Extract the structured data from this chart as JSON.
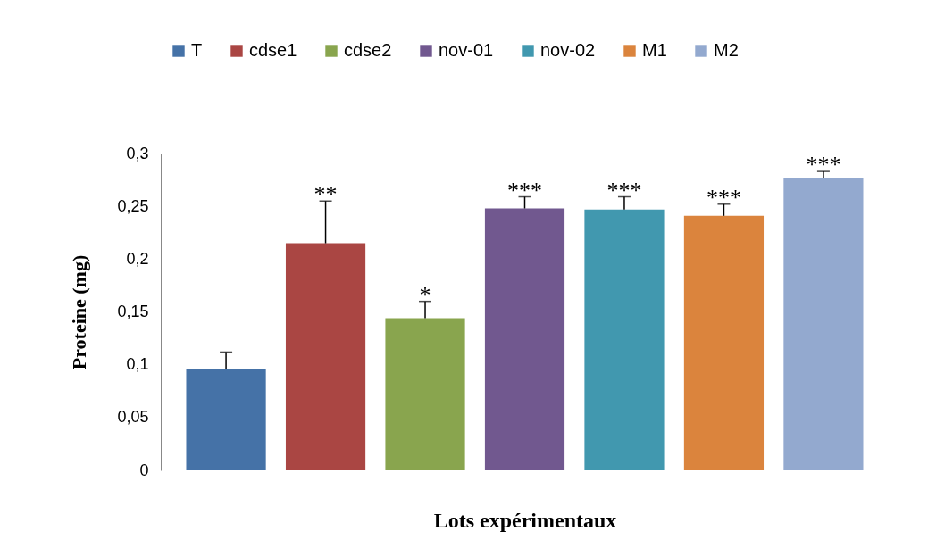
{
  "chart_data": {
    "type": "bar",
    "xlabel": "Lots expérimentaux",
    "ylabel": "Proteine (mg)",
    "categories": [
      null
    ],
    "series": [
      {
        "name": "T",
        "color": "#4572a7",
        "values": [
          0.096
        ],
        "errors": [
          [
            0.096,
            0.112
          ]
        ]
      },
      {
        "name": "cdse1",
        "color": "#aa4643",
        "values": [
          0.215
        ],
        "errors": [
          [
            0.215,
            0.255
          ]
        ]
      },
      {
        "name": "cdse2",
        "color": "#89a54e",
        "values": [
          0.144
        ],
        "errors": [
          [
            0.144,
            0.16
          ]
        ]
      },
      {
        "name": "nov-01",
        "color": "#71588f",
        "values": [
          0.248
        ],
        "errors": [
          [
            0.248,
            0.259
          ]
        ]
      },
      {
        "name": "nov-02",
        "color": "#4198af",
        "values": [
          0.247
        ],
        "errors": [
          [
            0.247,
            0.259
          ]
        ]
      },
      {
        "name": "M1",
        "color": "#db843d",
        "values": [
          0.241
        ],
        "errors": [
          [
            0.241,
            0.252
          ]
        ]
      },
      {
        "name": "M2",
        "color": "#93a9cf",
        "values": [
          0.277
        ],
        "errors": [
          [
            0.277,
            0.283
          ]
        ]
      }
    ],
    "ylim": [
      0,
      0.3
    ],
    "yticks": [
      {
        "value": 0,
        "label": "0"
      },
      {
        "value": 0.05,
        "label": "0,05"
      },
      {
        "value": 0.1,
        "label": "0,1"
      },
      {
        "value": 0.15,
        "label": "0,15"
      },
      {
        "value": 0.2,
        "label": "0,2"
      },
      {
        "value": 0.25,
        "label": "0,25"
      },
      {
        "value": 0.3,
        "label": "0,3"
      }
    ],
    "tick_labels": "y",
    "grid": false,
    "legend": "top",
    "annotations": [
      "**",
      "*",
      "***",
      "***",
      "***",
      "***"
    ]
  }
}
